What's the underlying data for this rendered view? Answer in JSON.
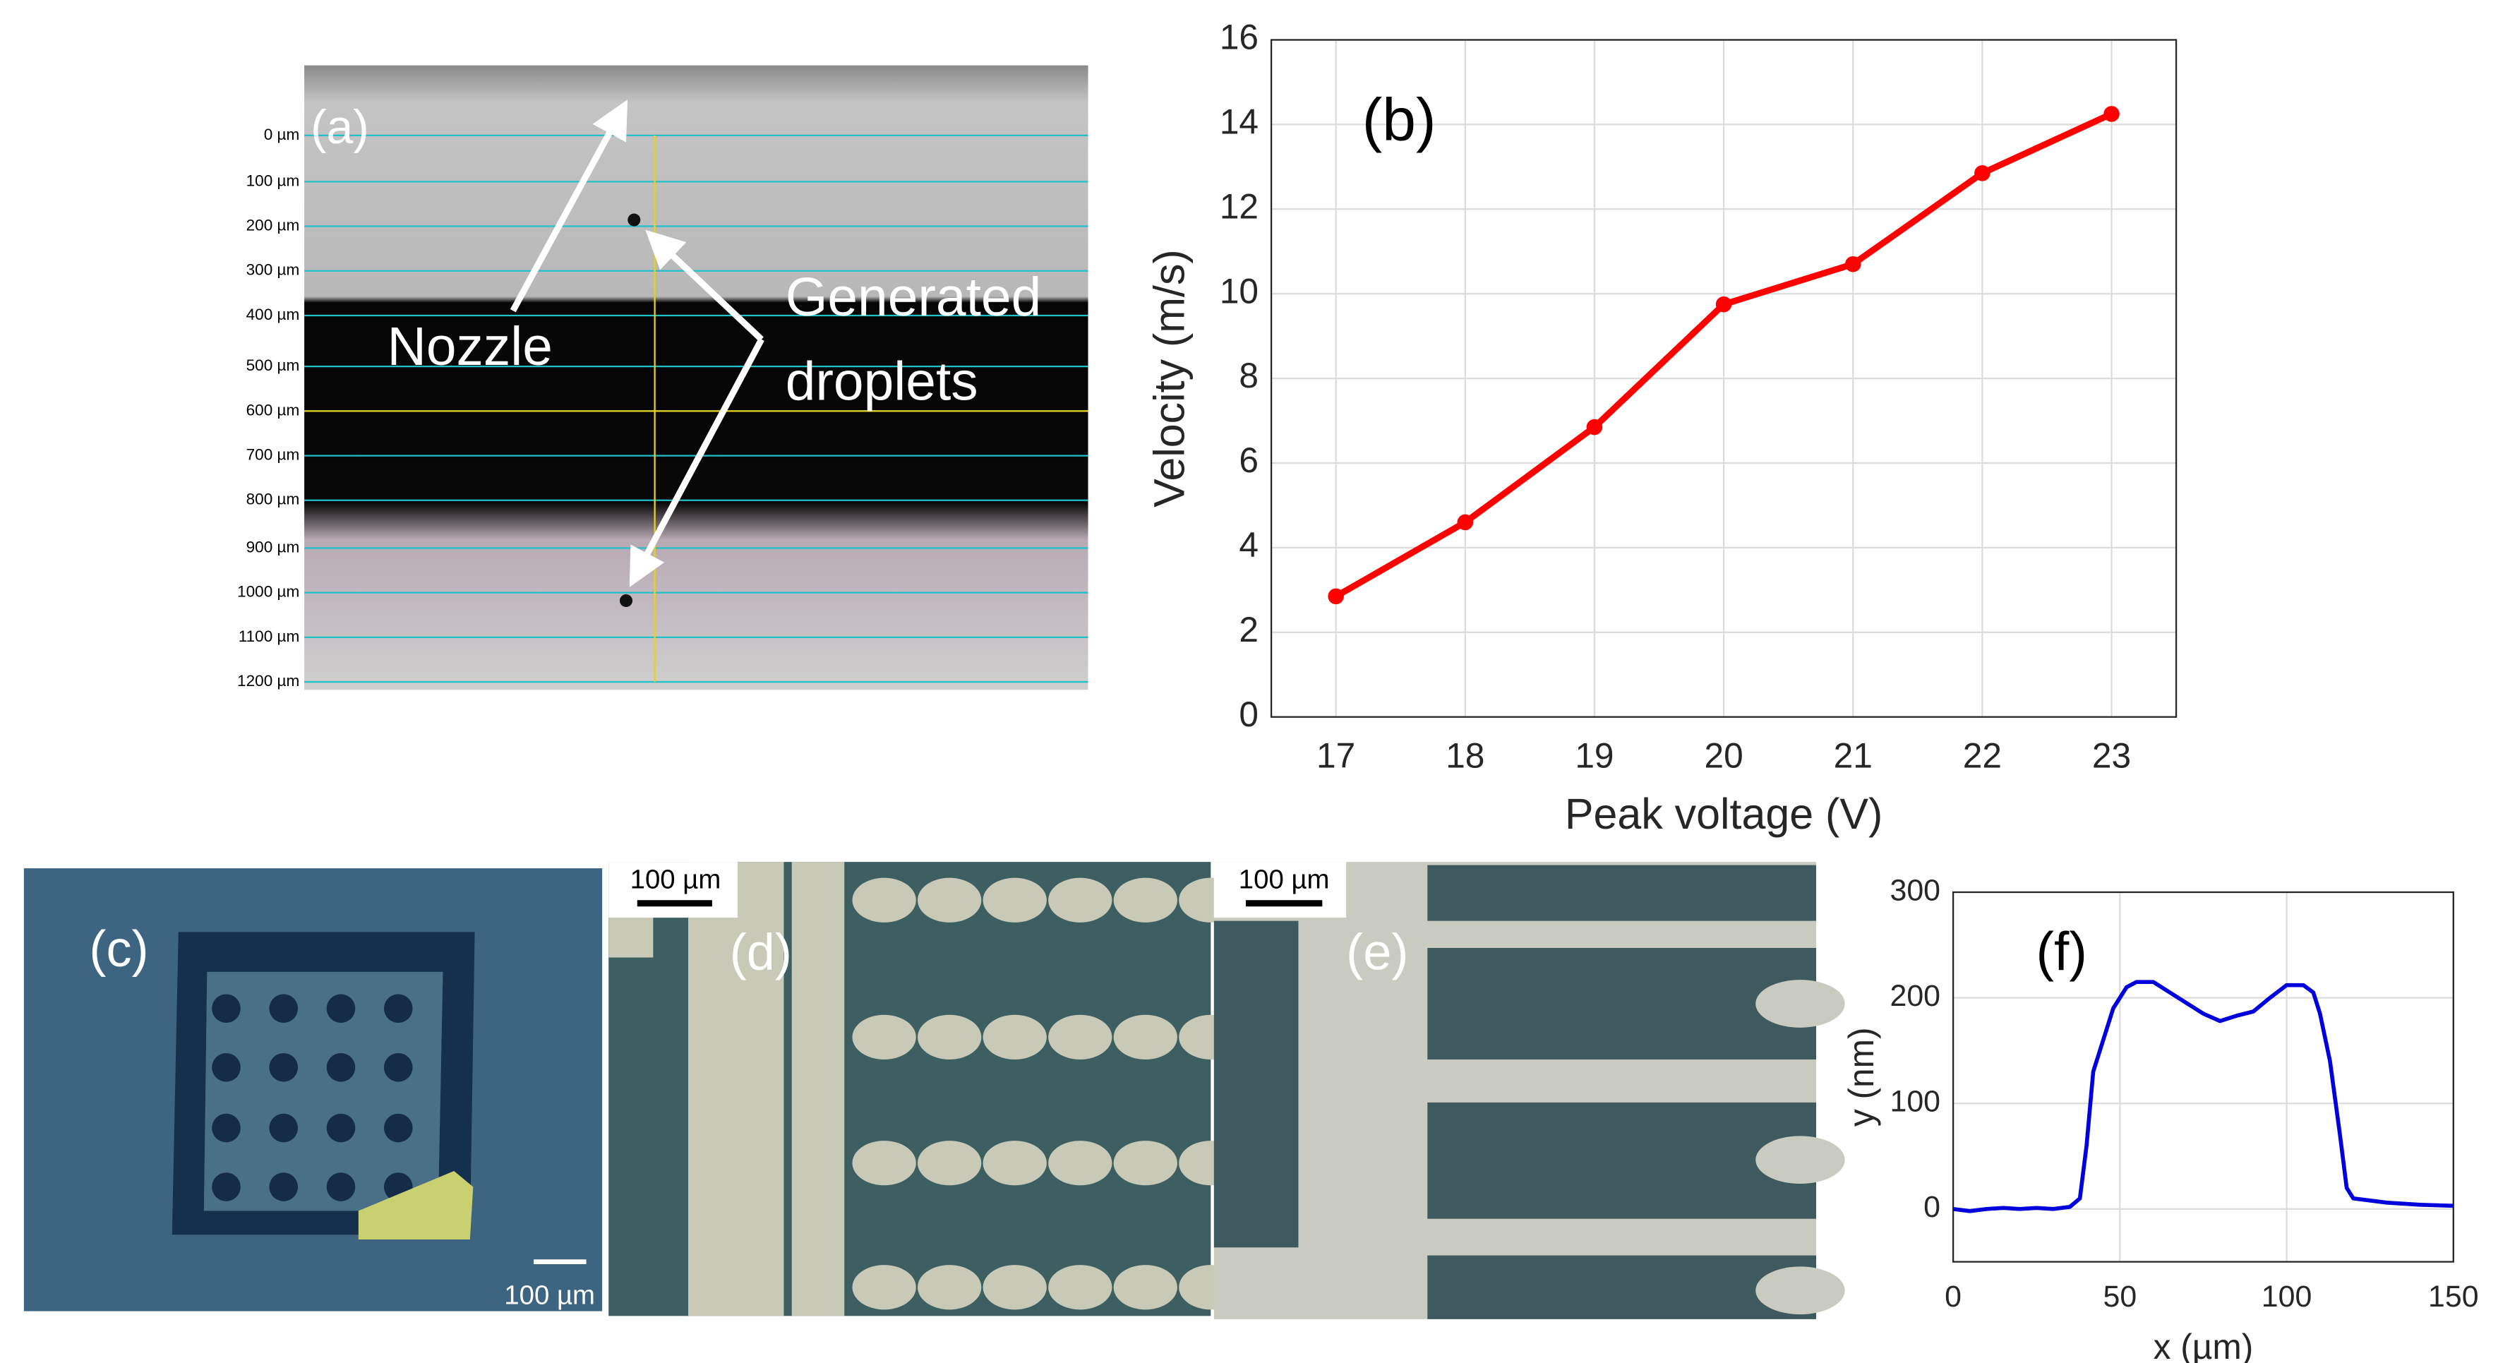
{
  "chart_data": [
    {
      "type": "line",
      "annotation": "(b)",
      "xlabel": "Peak voltage (V)",
      "ylabel": "Velocity (m/s)",
      "x": [
        17,
        18,
        19,
        20,
        21,
        22,
        23
      ],
      "values": [
        2.85,
        4.6,
        6.85,
        9.75,
        10.7,
        12.85,
        14.25
      ],
      "color": "#ff0000",
      "xlim": [
        16.5,
        23.5
      ],
      "xticks": [
        17,
        18,
        19,
        20,
        21,
        22,
        23
      ],
      "ylim": [
        0,
        16
      ],
      "yticks": [
        0,
        2,
        4,
        6,
        8,
        10,
        12,
        14,
        16
      ],
      "grid": true,
      "markers": true
    },
    {
      "type": "line",
      "annotation": "(f)",
      "xlabel": "x (µm)",
      "ylabel": "y (nm)",
      "x": [
        0,
        5,
        10,
        15,
        20,
        25,
        30,
        35,
        38,
        40,
        42,
        45,
        48,
        52,
        55,
        60,
        65,
        70,
        75,
        80,
        85,
        90,
        95,
        100,
        105,
        108,
        110,
        113,
        116,
        118,
        120,
        125,
        130,
        140,
        150
      ],
      "values": [
        0,
        -2,
        0,
        1,
        0,
        1,
        0,
        2,
        10,
        60,
        130,
        160,
        190,
        210,
        215,
        215,
        205,
        195,
        185,
        178,
        183,
        187,
        200,
        212,
        212,
        205,
        185,
        140,
        70,
        20,
        10,
        8,
        6,
        4,
        3
      ],
      "color": "#0000dd",
      "xlim": [
        0,
        150
      ],
      "xticks": [
        0,
        50,
        100,
        150
      ],
      "ylim": [
        -50,
        300
      ],
      "yticks": [
        0,
        100,
        200,
        300
      ],
      "grid": true,
      "markers": false
    }
  ],
  "panel_a": {
    "label": "(a)",
    "scale_labels": [
      "0 µm",
      "100 µm",
      "200 µm",
      "300 µm",
      "400 µm",
      "500 µm",
      "600 µm",
      "700 µm",
      "800 µm",
      "900 µm",
      "1000 µm",
      "1100 µm",
      "1200 µm"
    ],
    "annotations": [
      "Nozzle",
      "Generated",
      "droplets"
    ]
  },
  "panel_c": {
    "label": "(c)",
    "scale_bar": "100 µm"
  },
  "panel_d": {
    "label": "(d)",
    "scale_bar": "100 µm"
  },
  "panel_e": {
    "label": "(e)",
    "scale_bar": "100 µm"
  }
}
